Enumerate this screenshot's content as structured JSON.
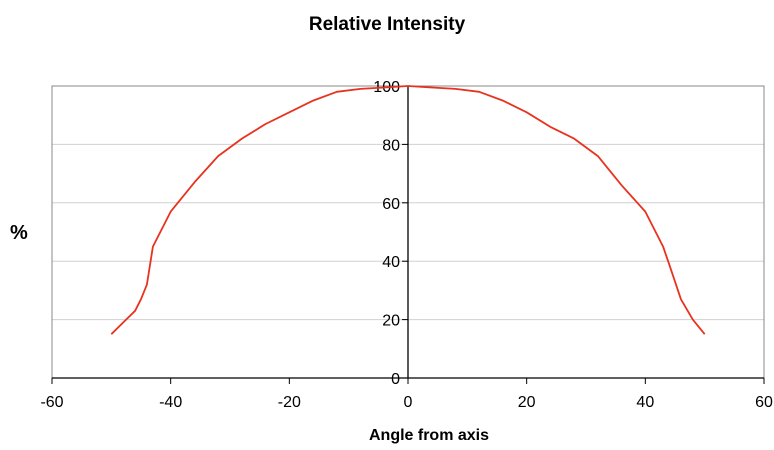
{
  "chart_data": {
    "type": "line",
    "title": "Relative Intensity",
    "xlabel": "Angle from axis",
    "ylabel": "%",
    "xlim": [
      -60,
      60
    ],
    "ylim": [
      0,
      100
    ],
    "xticks": [
      -60,
      -40,
      -20,
      0,
      20,
      40,
      60
    ],
    "yticks": [
      0,
      20,
      40,
      60,
      80,
      100
    ],
    "grid": "horizontal",
    "series": [
      {
        "color": "#e8321e",
        "x": [
          -50,
          -48,
          -46,
          -45,
          -44,
          -43,
          -40,
          -36,
          -32,
          -28,
          -24,
          -20,
          -16,
          -12,
          -8,
          -4,
          0,
          4,
          8,
          12,
          16,
          20,
          24,
          28,
          32,
          36,
          40,
          43,
          44,
          45,
          46,
          48,
          50
        ],
        "y": [
          15,
          19,
          23,
          27,
          32,
          45,
          57,
          67,
          76,
          82,
          87,
          91,
          95,
          98,
          99,
          99.5,
          100,
          99.5,
          99,
          98,
          95,
          91,
          86,
          82,
          76,
          66,
          57,
          45,
          39,
          33,
          27,
          20,
          15
        ]
      }
    ]
  }
}
